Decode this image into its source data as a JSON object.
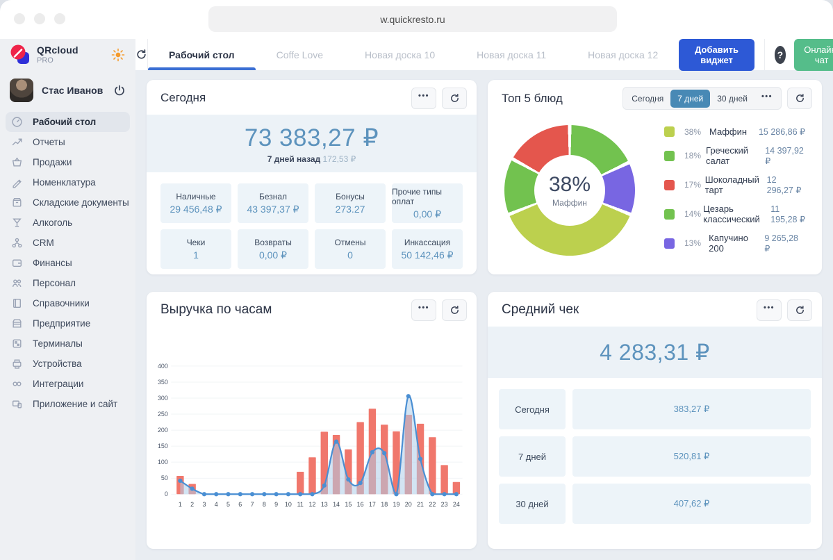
{
  "browser": {
    "url": "w.quickresto.ru"
  },
  "brand": {
    "name": "QRcloud",
    "plan": "PRO"
  },
  "user": {
    "name": "Стас Иванов"
  },
  "tabs": [
    {
      "label": "Рабочий стол",
      "active": true
    },
    {
      "label": "Coffe Love",
      "active": false
    },
    {
      "label": "Новая доска 10",
      "active": false
    },
    {
      "label": "Новая доска 11",
      "active": false
    },
    {
      "label": "Новая доска 12",
      "active": false
    }
  ],
  "header": {
    "add_widget": "Добавить виджет",
    "help": "?",
    "chat": "Онлайн-чат"
  },
  "sidebar": {
    "items": [
      {
        "label": "Рабочий стол",
        "icon": "dashboard",
        "active": true
      },
      {
        "label": "Отчеты",
        "icon": "reports",
        "active": false
      },
      {
        "label": "Продажи",
        "icon": "sales",
        "active": false
      },
      {
        "label": "Номенклатура",
        "icon": "nomenclature",
        "active": false
      },
      {
        "label": "Складские документы",
        "icon": "warehouse",
        "active": false
      },
      {
        "label": "Алкоголь",
        "icon": "alcohol",
        "active": false
      },
      {
        "label": "CRM",
        "icon": "crm",
        "active": false
      },
      {
        "label": "Финансы",
        "icon": "finance",
        "active": false
      },
      {
        "label": "Персонал",
        "icon": "staff",
        "active": false
      },
      {
        "label": "Справочники",
        "icon": "directories",
        "active": false
      },
      {
        "label": "Предприятие",
        "icon": "enterprise",
        "active": false
      },
      {
        "label": "Терминалы",
        "icon": "terminals",
        "active": false
      },
      {
        "label": "Устройства",
        "icon": "devices",
        "active": false
      },
      {
        "label": "Интеграции",
        "icon": "integrations",
        "active": false
      },
      {
        "label": "Приложение и сайт",
        "icon": "appsite",
        "active": false
      }
    ]
  },
  "today_card": {
    "title": "Сегодня",
    "total": "73 383,27 ₽",
    "compare_label": "7 дней назад",
    "compare_value": "172,53 ₽",
    "tiles": [
      {
        "label": "Наличные",
        "value": "29 456,48 ₽"
      },
      {
        "label": "Безнал",
        "value": "43 397,37 ₽"
      },
      {
        "label": "Бонусы",
        "value": "273.27"
      },
      {
        "label": "Прочие типы оплат",
        "value": "0,00 ₽"
      },
      {
        "label": "Чеки",
        "value": "1"
      },
      {
        "label": "Возвраты",
        "value": "0,00 ₽"
      },
      {
        "label": "Отмены",
        "value": "0"
      },
      {
        "label": "Инкассация",
        "value": "50 142,46 ₽"
      }
    ]
  },
  "top_dishes": {
    "title": "Топ 5 блюд",
    "ranges": [
      {
        "label": "Сегодня",
        "active": false
      },
      {
        "label": "7 дней",
        "active": true
      },
      {
        "label": "30 дней",
        "active": false
      }
    ],
    "center_percent": "38%",
    "center_label": "Маффин",
    "items": [
      {
        "percent": "38%",
        "name": "Маффин",
        "value": "15 286,86 ₽",
        "color": "#bcd04e"
      },
      {
        "percent": "18%",
        "name": "Греческий салат",
        "value": "14 397,92 ₽",
        "color": "#72c24f"
      },
      {
        "percent": "17%",
        "name": "Шоколадный тарт",
        "value": "12 296,27 ₽",
        "color": "#e4564d"
      },
      {
        "percent": "14%",
        "name": "Цезарь классический",
        "value": "11 195,28 ₽",
        "color": "#72c24f"
      },
      {
        "percent": "13%",
        "name": "Капучино 200",
        "value": "9 265,28 ₽",
        "color": "#7866e2"
      }
    ]
  },
  "revenue_card": {
    "title": "Выручка по часам"
  },
  "avg_check": {
    "title": "Средний чек",
    "total": "4 283,31 ₽",
    "rows": [
      {
        "label": "Сегодня",
        "value": "383,27 ₽"
      },
      {
        "label": "7 дней",
        "value": "520,81 ₽"
      },
      {
        "label": "30 дней",
        "value": "407,62 ₽"
      }
    ]
  },
  "chart_data": [
    {
      "type": "pie",
      "title": "Топ 5 блюд",
      "donut": true,
      "labels": [
        "Маффин",
        "Греческий салат",
        "Шоколадный тарт",
        "Цезарь классический",
        "Капучино 200"
      ],
      "values": [
        38,
        18,
        17,
        14,
        13
      ],
      "amounts": [
        "15 286,86 ₽",
        "14 397,92 ₽",
        "12 296,27 ₽",
        "11 195,28 ₽",
        "9 265,28 ₽"
      ],
      "colors": [
        "#bcd04e",
        "#72c24f",
        "#e4564d",
        "#72c24f",
        "#7866e2"
      ],
      "center_text": "38%",
      "center_sub": "Маффин",
      "legend_position": "right",
      "segments_clockwise": [
        {
          "label": "Греческий салат",
          "percent": 18,
          "color": "#72c24f"
        },
        {
          "label": "Капучино 200",
          "percent": 13,
          "color": "#7866e2"
        },
        {
          "label": "Маффин",
          "percent": 38,
          "color": "#bcd04e"
        },
        {
          "label": "Цезарь классический",
          "percent": 14,
          "color": "#72c24f"
        },
        {
          "label": "Шоколадный тарт",
          "percent": 17,
          "color": "#e4564d"
        }
      ]
    },
    {
      "type": "bar",
      "title": "Выручка по часам",
      "categories": [
        1,
        2,
        3,
        4,
        5,
        6,
        7,
        8,
        9,
        10,
        11,
        12,
        13,
        14,
        15,
        16,
        17,
        18,
        19,
        20,
        21,
        22,
        23,
        24
      ],
      "series": [
        {
          "name": "Выручка (бары)",
          "type": "bar",
          "color": "#f0776c",
          "values": [
            57,
            32,
            0,
            0,
            0,
            0,
            0,
            0,
            0,
            0,
            70,
            115,
            195,
            185,
            140,
            225,
            267,
            217,
            196,
            248,
            220,
            178,
            91,
            38
          ]
        },
        {
          "name": "Выручка (линия)",
          "type": "line",
          "color": "#4a8fd3",
          "fill": "#aecdea",
          "values": [
            42,
            17,
            0,
            0,
            0,
            0,
            0,
            0,
            0,
            0,
            0,
            0,
            27,
            164,
            46,
            35,
            131,
            128,
            0,
            306,
            110,
            0,
            0,
            0
          ]
        }
      ],
      "ylim": [
        0,
        400
      ],
      "yticks": [
        0,
        50,
        100,
        150,
        200,
        250,
        300,
        350,
        400
      ],
      "grid": true,
      "legend_position": "none"
    }
  ]
}
